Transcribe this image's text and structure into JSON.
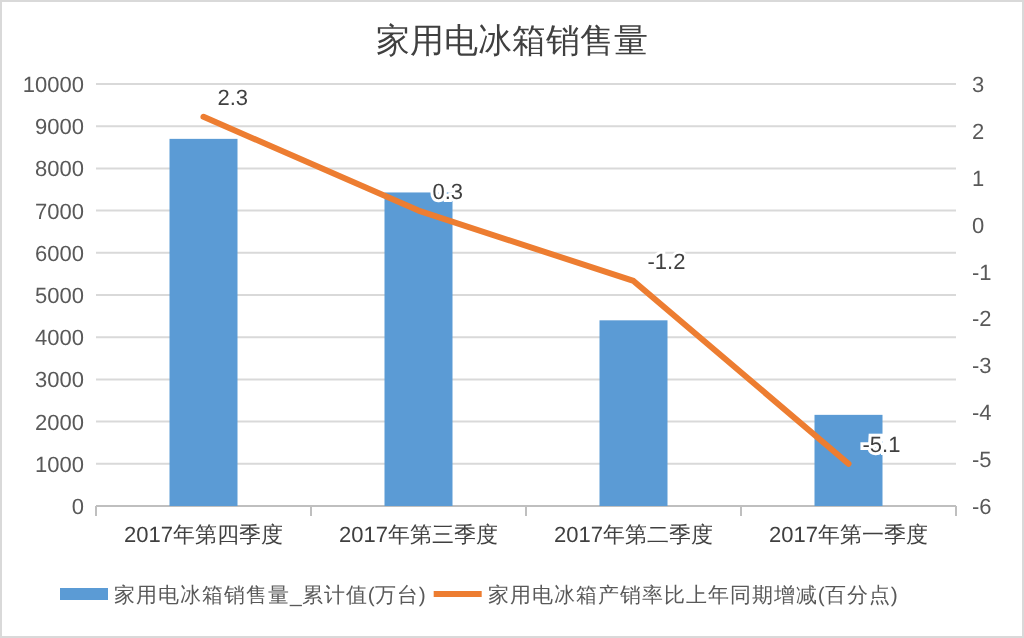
{
  "chart_data": {
    "type": "bar",
    "title": "家用电冰箱销售量",
    "categories": [
      "2017年第四季度",
      "2017年第三季度",
      "2017年第二季度",
      "2017年第一季度"
    ],
    "series": [
      {
        "name": "家用电冰箱销售量_累计值(万台)",
        "color": "#5b9bd5",
        "values": [
          8700,
          7430,
          4400,
          2160
        ]
      },
      {
        "name": "家用电冰箱产销率比上年同期增减(百分点)",
        "type": "line",
        "axis": "y2",
        "color": "#ed7d31",
        "values": [
          2.3,
          0.3,
          -1.2,
          -5.1
        ],
        "value_labels": [
          "2.3",
          "0.3",
          "-1.2",
          "-5.1"
        ]
      }
    ],
    "ylim": [
      0,
      10000
    ],
    "yticks": [
      0,
      1000,
      2000,
      3000,
      4000,
      5000,
      6000,
      7000,
      8000,
      9000,
      10000
    ],
    "y2lim": [
      -6,
      3
    ],
    "y2ticks": [
      -6,
      -5,
      -4,
      -3,
      -2,
      -1,
      0,
      1,
      2,
      3
    ],
    "grid": "y",
    "legend": "bottom",
    "marker": "none"
  }
}
